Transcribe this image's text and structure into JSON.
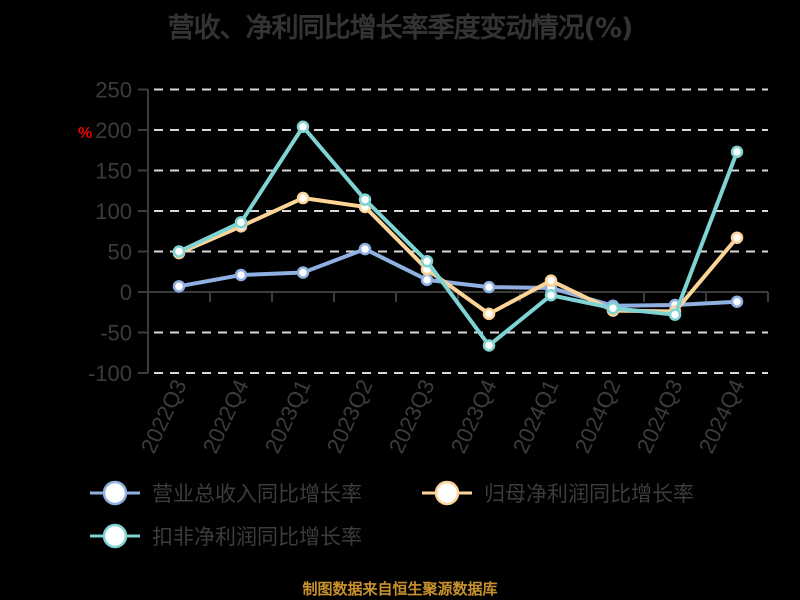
{
  "title": "营收、净利同比增长率季度变动情况(%)",
  "source": "制图数据来自恒生聚源数据库",
  "y_unit": "%",
  "chart_data": {
    "type": "line",
    "title": "营收、净利同比增长率季度变动情况(%)",
    "xlabel": "",
    "ylabel": "%",
    "ylim": [
      -100,
      250
    ],
    "yticks": [
      250,
      200,
      150,
      100,
      50,
      0,
      -50,
      -100
    ],
    "grid": true,
    "legend_position": "bottom",
    "categories": [
      "2022Q3",
      "2022Q4",
      "2023Q1",
      "2023Q2",
      "2023Q3",
      "2023Q4",
      "2024Q1",
      "2024Q2",
      "2024Q3",
      "2024Q4"
    ],
    "series": [
      {
        "name": "营业总收入同比增长率",
        "color": "#8fb0e0",
        "values": [
          7,
          21,
          24,
          53,
          15,
          6,
          5,
          -17,
          -16,
          -12
        ]
      },
      {
        "name": "归母净利润同比增长率",
        "color": "#fcd497",
        "values": [
          48,
          81,
          116,
          105,
          28,
          -27,
          14,
          -23,
          -24,
          67
        ]
      },
      {
        "name": "扣非净利润同比增长率",
        "color": "#7fd3d3",
        "values": [
          50,
          86,
          204,
          114,
          38,
          -66,
          -4,
          -20,
          -28,
          173
        ]
      }
    ]
  }
}
